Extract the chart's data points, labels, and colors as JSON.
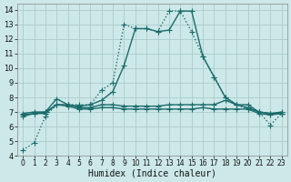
{
  "xlabel": "Humidex (Indice chaleur)",
  "bg_color": "#cde8e8",
  "grid_color": "#aacccc",
  "line_color": "#1a6b6b",
  "xlim": [
    -0.5,
    23.5
  ],
  "ylim": [
    4,
    14.4
  ],
  "xtick_labels": [
    "0",
    "1",
    "2",
    "3",
    "4",
    "5",
    "6",
    "7",
    "8",
    "9",
    "10",
    "11",
    "12",
    "13",
    "14",
    "15",
    "16",
    "17",
    "18",
    "19",
    "20",
    "21",
    "22",
    "23"
  ],
  "xticks": [
    0,
    1,
    2,
    3,
    4,
    5,
    6,
    7,
    8,
    9,
    10,
    11,
    12,
    13,
    14,
    15,
    16,
    17,
    18,
    19,
    20,
    21,
    22,
    23
  ],
  "yticks": [
    4,
    5,
    6,
    7,
    8,
    9,
    10,
    11,
    12,
    13,
    14
  ],
  "series": [
    {
      "x": [
        0,
        1,
        2,
        3,
        4,
        5,
        6,
        7,
        8,
        9,
        10,
        11,
        12,
        13,
        14,
        15,
        16,
        17,
        18,
        19,
        20,
        21,
        22,
        23
      ],
      "y": [
        4.4,
        4.9,
        6.7,
        7.5,
        7.5,
        7.5,
        7.5,
        8.5,
        9.0,
        13.0,
        12.7,
        12.7,
        12.5,
        13.9,
        13.9,
        12.5,
        10.8,
        9.4,
        8.0,
        7.5,
        7.2,
        7.0,
        6.1,
        6.9
      ],
      "marker": "+",
      "markersize": 4,
      "linestyle": ":",
      "linewidth": 1.0
    },
    {
      "x": [
        0,
        1,
        2,
        3,
        4,
        5,
        6,
        7,
        8,
        9,
        10,
        11,
        12,
        13,
        14,
        15,
        16,
        17,
        18,
        19,
        20,
        21,
        22,
        23
      ],
      "y": [
        6.7,
        6.9,
        7.0,
        7.5,
        7.5,
        7.4,
        7.5,
        7.8,
        8.4,
        10.2,
        12.7,
        12.7,
        12.5,
        12.6,
        13.9,
        13.9,
        10.8,
        9.4,
        8.0,
        7.5,
        7.3,
        7.0,
        6.9,
        6.9
      ],
      "marker": "+",
      "markersize": 4,
      "linestyle": "-",
      "linewidth": 1.0
    },
    {
      "x": [
        0,
        1,
        2,
        3,
        4,
        5,
        6,
        7,
        8,
        9,
        10,
        11,
        12,
        13,
        14,
        15,
        16,
        17,
        18,
        19,
        20,
        21,
        22,
        23
      ],
      "y": [
        6.9,
        7.0,
        7.0,
        7.9,
        7.5,
        7.3,
        7.3,
        7.5,
        7.5,
        7.4,
        7.4,
        7.4,
        7.4,
        7.5,
        7.5,
        7.5,
        7.5,
        7.5,
        7.8,
        7.5,
        7.5,
        7.0,
        6.9,
        7.0
      ],
      "marker": "+",
      "markersize": 4,
      "linestyle": "-",
      "linewidth": 1.0
    },
    {
      "x": [
        0,
        1,
        2,
        3,
        4,
        5,
        6,
        7,
        8,
        9,
        10,
        11,
        12,
        13,
        14,
        15,
        16,
        17,
        18,
        19,
        20,
        21,
        22,
        23
      ],
      "y": [
        6.8,
        6.9,
        6.9,
        7.5,
        7.4,
        7.2,
        7.2,
        7.3,
        7.3,
        7.2,
        7.2,
        7.2,
        7.2,
        7.2,
        7.2,
        7.2,
        7.3,
        7.2,
        7.2,
        7.2,
        7.2,
        6.9,
        6.8,
        6.9
      ],
      "marker": "+",
      "markersize": 4,
      "linestyle": "-",
      "linewidth": 1.0
    }
  ]
}
